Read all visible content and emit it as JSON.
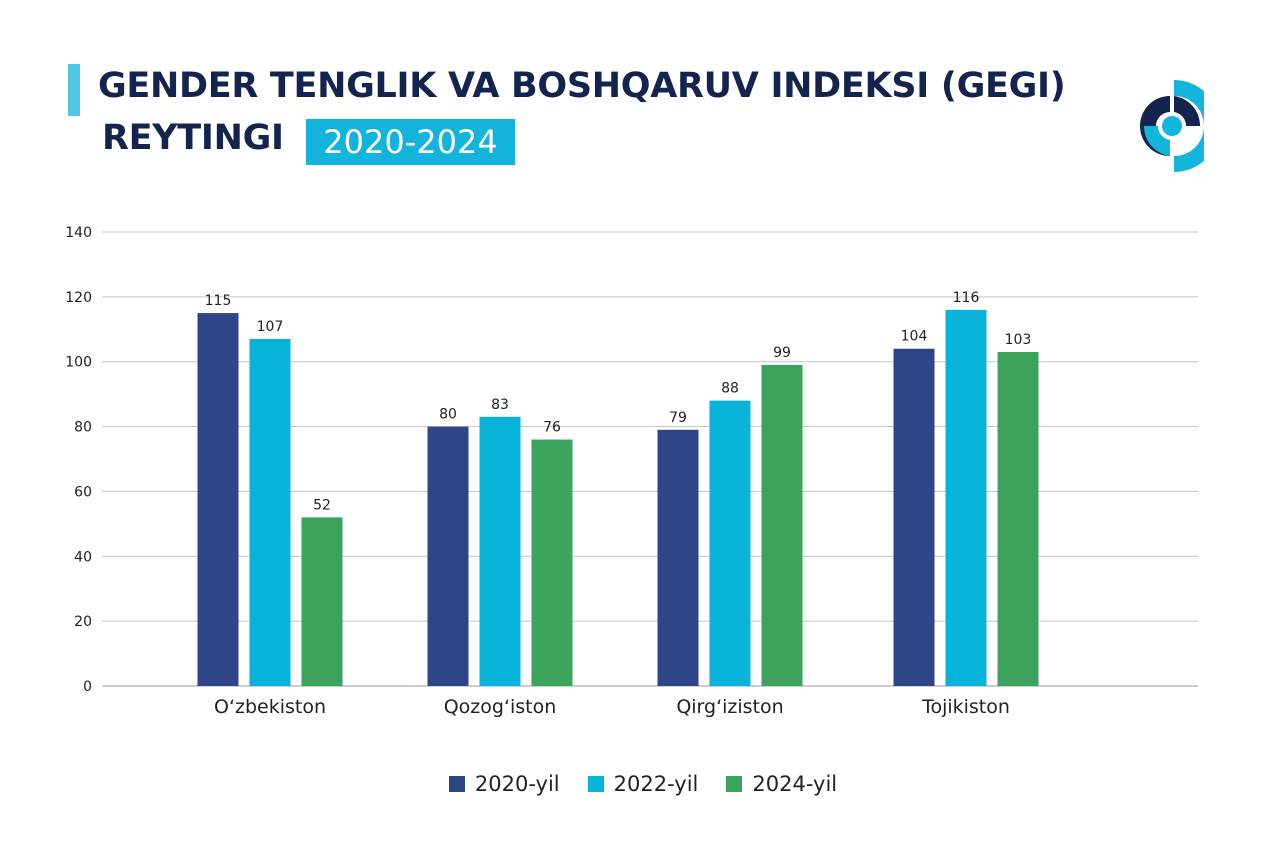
{
  "header": {
    "title_line1": "GENDER TENGLIK VA BOSHQARUV INDEKSI (GEGI)",
    "title_line2": "REYTINGI",
    "year_badge": "2020-2024",
    "accent_color": "#4fc6e3",
    "badge_color": "#12b4dc",
    "title_color": "#14244f"
  },
  "logo": {
    "icon": "organization-logo-icon"
  },
  "chart_data": {
    "type": "bar",
    "title": "GENDER TENGLIK VA BOSHQARUV INDEKSI (GEGI) REYTINGI 2020-2024",
    "categories": [
      "O‘zbekiston",
      "Qozog‘iston",
      "Qirg‘iziston",
      "Tojikiston"
    ],
    "series": [
      {
        "name": "2020-yil",
        "color": "#2e4588",
        "values": [
          115,
          80,
          79,
          104
        ]
      },
      {
        "name": "2022-yil",
        "color": "#08b3d9",
        "values": [
          107,
          83,
          88,
          116
        ]
      },
      {
        "name": "2024-yil",
        "color": "#3ca35d",
        "values": [
          52,
          76,
          99,
          103
        ]
      }
    ],
    "yticks": [
      0,
      20,
      40,
      60,
      80,
      100,
      120,
      140
    ],
    "ylim": [
      0,
      140
    ],
    "grid": true,
    "legend_position": "bottom",
    "xlabel": "",
    "ylabel": ""
  }
}
